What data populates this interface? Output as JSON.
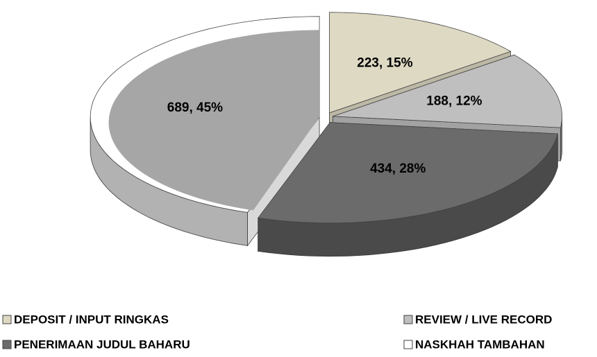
{
  "chart_data": {
    "type": "pie",
    "categories": [
      "DEPOSIT / INPUT RINGKAS",
      "REVIEW / LIVE RECORD",
      "PENERIMAAN JUDUL BAHARU",
      "NASKHAH TAMBAHAN"
    ],
    "values": [
      223,
      188,
      434,
      689
    ],
    "value_labels": [
      "223, 15%",
      "188, 12%",
      "434, 28%",
      "689, 45%"
    ],
    "colors": [
      "#ddd9c3",
      "#bfbfbf",
      "#6b6b6b",
      "#ffffff"
    ],
    "legend": "bottom"
  }
}
